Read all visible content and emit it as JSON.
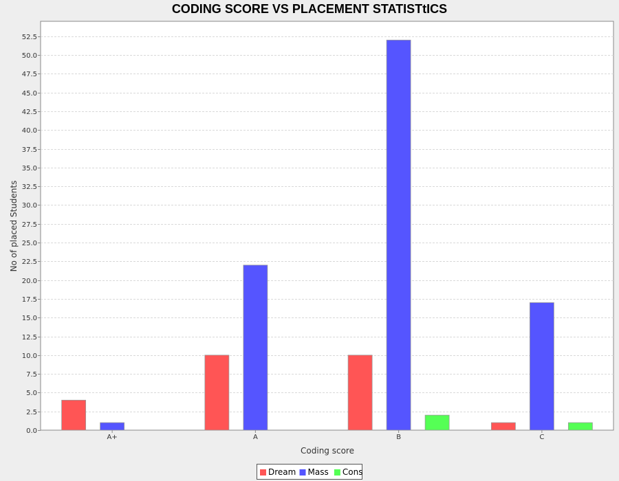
{
  "chart_data": {
    "type": "bar",
    "title": "CODING SCORE VS PLACEMENT STATISTtICS",
    "xlabel": "Coding score",
    "ylabel": "No of placed Students",
    "categories": [
      "A+",
      "A",
      "B",
      "C"
    ],
    "series": [
      {
        "name": "Dream",
        "color": "#ff5555",
        "values": [
          4,
          10,
          10,
          1
        ]
      },
      {
        "name": "Mass",
        "color": "#5555ff",
        "values": [
          1,
          22,
          52,
          17
        ]
      },
      {
        "name": "Cons",
        "color": "#55ff55",
        "values": [
          0,
          0,
          2,
          1
        ]
      }
    ],
    "ylim": [
      0,
      54.5
    ],
    "yticks": [
      0.0,
      2.5,
      5.0,
      7.5,
      10.0,
      12.5,
      15.0,
      17.5,
      20.0,
      22.5,
      25.0,
      27.5,
      30.0,
      32.5,
      35.0,
      37.5,
      40.0,
      42.5,
      45.0,
      47.5,
      50.0,
      52.5
    ],
    "grid": true,
    "legend_position": "bottom"
  }
}
